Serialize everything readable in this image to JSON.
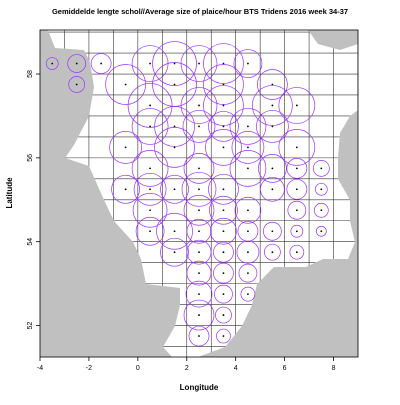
{
  "chart_data": {
    "type": "bubble",
    "title": "Gemiddelde lengte schol//Average size of plaice/hour BTS Tridens 2016 week 34-37",
    "xlabel": "Longitude",
    "ylabel": "Latitude",
    "xlim": [
      -4,
      9
    ],
    "ylim": [
      51.25,
      59.05
    ],
    "xticks": [
      -4,
      -2,
      0,
      2,
      4,
      6,
      8
    ],
    "yticks": [
      52,
      54,
      56,
      58
    ],
    "color": "#9b30ff",
    "point_color": "#000000",
    "land_color": "#c0c0c0",
    "x": [
      -3.5,
      -2.5,
      -1.5,
      0.5,
      1.5,
      2.5,
      3.5,
      4.5,
      -2.5,
      -0.5,
      1.5,
      3.5,
      5.5,
      0.5,
      2.5,
      3.5,
      5.5,
      6.5,
      0.5,
      1.5,
      2.5,
      3.5,
      4.5,
      5.5,
      -0.5,
      1.5,
      3.5,
      4.5,
      6.5,
      0.5,
      2.5,
      4.5,
      5.5,
      6.5,
      7.5,
      -0.5,
      0.5,
      1.5,
      2.5,
      3.5,
      5.5,
      6.5,
      7.5,
      0.5,
      2.5,
      3.5,
      4.5,
      6.5,
      7.5,
      0.5,
      1.5,
      2.5,
      3.5,
      4.5,
      5.5,
      6.5,
      7.5,
      1.5,
      2.5,
      3.5,
      4.5,
      5.5,
      6.5,
      2.5,
      3.5,
      4.5,
      2.5,
      3.5,
      4.5,
      2.5,
      3.5,
      2.5,
      3.5
    ],
    "y": [
      58.25,
      58.25,
      58.25,
      58.25,
      58.25,
      58.25,
      58.25,
      58.25,
      57.75,
      57.75,
      57.75,
      57.75,
      57.75,
      57.25,
      57.25,
      57.25,
      57.25,
      57.25,
      56.75,
      56.75,
      56.75,
      56.75,
      56.75,
      56.75,
      56.25,
      56.25,
      56.25,
      56.25,
      56.25,
      55.75,
      55.75,
      55.75,
      55.75,
      55.75,
      55.75,
      55.25,
      55.25,
      55.25,
      55.25,
      55.25,
      55.25,
      55.25,
      55.25,
      54.75,
      54.75,
      54.75,
      54.75,
      54.75,
      54.75,
      54.25,
      54.25,
      54.25,
      54.25,
      54.25,
      54.25,
      54.25,
      54.25,
      53.75,
      53.75,
      53.75,
      53.75,
      53.75,
      53.75,
      53.25,
      53.25,
      53.25,
      52.75,
      52.75,
      52.75,
      52.25,
      52.25,
      51.75,
      51.75
    ],
    "sizes": [
      6,
      9,
      10,
      18,
      22,
      18,
      20,
      14,
      8,
      20,
      22,
      20,
      15,
      22,
      18,
      20,
      20,
      18,
      18,
      20,
      16,
      15,
      18,
      16,
      16,
      20,
      18,
      16,
      18,
      18,
      15,
      18,
      14,
      10,
      8,
      14,
      16,
      14,
      17,
      15,
      12,
      10,
      6,
      17,
      15,
      14,
      13,
      9,
      7,
      14,
      18,
      12,
      13,
      10,
      9,
      6,
      5,
      14,
      12,
      10,
      11,
      8,
      7,
      12,
      10,
      9,
      13,
      9,
      7,
      15,
      8,
      10,
      7
    ]
  }
}
